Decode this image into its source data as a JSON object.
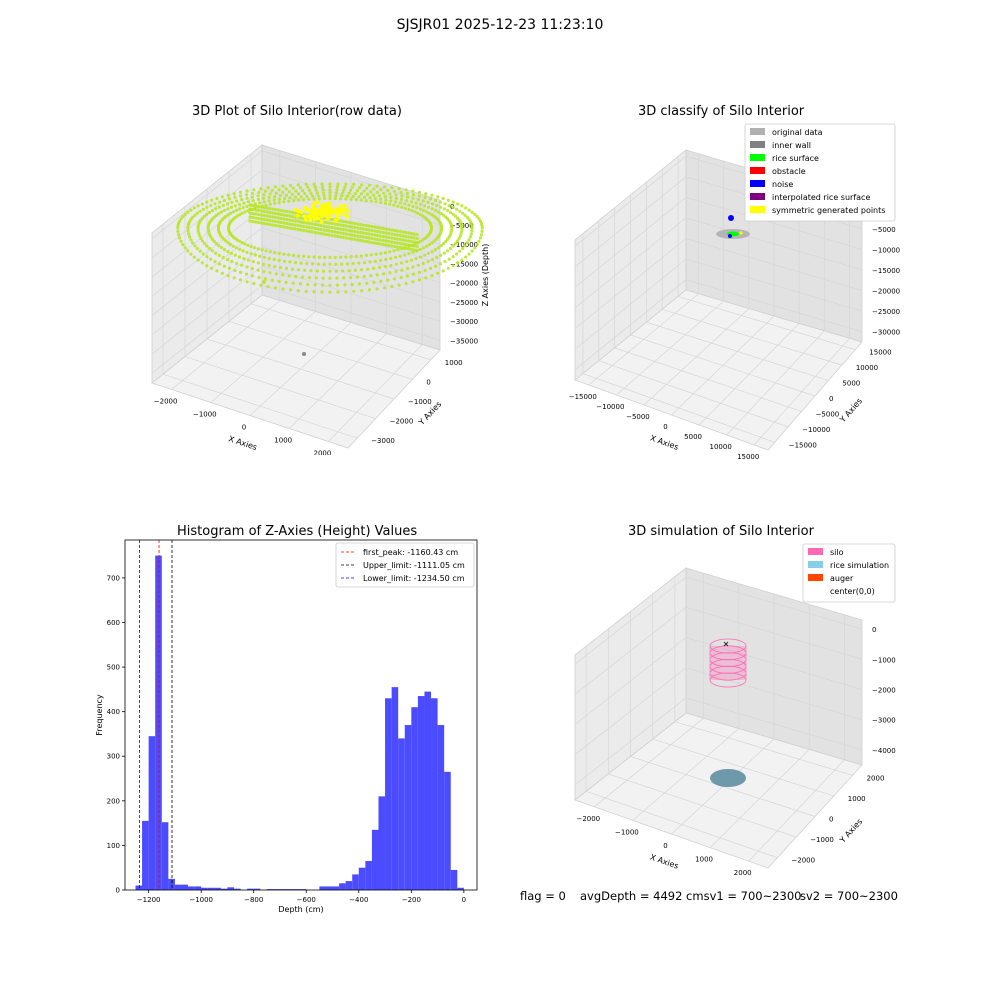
{
  "suptitle": "SJSJR01 2025-12-23 11:23:10",
  "status": {
    "flag": "flag = 0",
    "avg": "avgDepth = 4492 cmsv1 = 700~2300",
    "sv2": "sv2 = 700~2300"
  },
  "colors": {
    "raw_points": "#b5e61d",
    "symmetric": "#ffff00",
    "hist_bar": "#4b4bff",
    "first_peak_line": "#ff0000",
    "upper_line": "#000000",
    "lower_line": "#0000ff",
    "silo": "#ff69b4",
    "rice": "#87ceeb",
    "auger": "#ff4500"
  },
  "chart_data": [
    {
      "type": "scatter",
      "subtype": "3d",
      "title": "3D Plot of Silo Interior(row data)",
      "xlabel": "X Axies",
      "ylabel": "Y Axies",
      "zlabel": "Z Axies (Depth)",
      "x_ticks": [
        "−2000",
        "−1000",
        "0",
        "1000",
        "2000"
      ],
      "y_ticks": [
        "−3000",
        "−2000",
        "−1000",
        "0",
        "1000"
      ],
      "z_ticks": [
        "0",
        "−5000",
        "−10000",
        "−15000",
        "−20000",
        "−25000",
        "−30000",
        "−35000"
      ],
      "xlim": [
        -2600,
        2600
      ],
      "ylim": [
        -3400,
        1500
      ],
      "zlim": [
        -38000,
        2000
      ],
      "grid": true
    },
    {
      "type": "scatter",
      "subtype": "3d",
      "title": "3D classify of Silo Interior",
      "xlabel": "X Axies",
      "ylabel": "Y Axies",
      "zlabel": "Z Axies (Depth)",
      "x_ticks": [
        "−15000",
        "−10000",
        "−5000",
        "0",
        "5000",
        "10000",
        "15000"
      ],
      "y_ticks": [
        "−15000",
        "−10000",
        "−5000",
        "0",
        "5000",
        "10000",
        "15000"
      ],
      "z_ticks": [
        "0",
        "−5000",
        "−10000",
        "−15000",
        "−20000",
        "−25000",
        "−30000"
      ],
      "xlim": [
        -17000,
        17000
      ],
      "ylim": [
        -17000,
        17000
      ],
      "zlim": [
        -33000,
        2000
      ],
      "grid": true,
      "legend_position": "top-right",
      "legend": [
        {
          "label": "original data",
          "color": "#b0b0b0"
        },
        {
          "label": "inner wall",
          "color": "#808080"
        },
        {
          "label": "rice surface",
          "color": "#00ff00"
        },
        {
          "label": "obstacle",
          "color": "#ff0000"
        },
        {
          "label": "noise",
          "color": "#0000ff"
        },
        {
          "label": "interpolated rice surface",
          "color": "#800080"
        },
        {
          "label": "symmetric generated points",
          "color": "#ffff00"
        }
      ]
    },
    {
      "type": "bar",
      "subtype": "histogram",
      "title": "Histogram of Z-Axies (Height) Values",
      "xlabel": "Depth (cm)",
      "ylabel": "Frequency",
      "xlim": [
        -1290,
        50
      ],
      "ylim": [
        0,
        785
      ],
      "x_ticks": [
        -1200,
        -1000,
        -800,
        -600,
        -400,
        -200,
        0
      ],
      "x_tick_labels": [
        "−1200",
        "−1000",
        "−800",
        "−600",
        "−400",
        "−200",
        "0"
      ],
      "y_ticks": [
        0,
        100,
        200,
        300,
        400,
        500,
        600,
        700
      ],
      "bin_width": 25,
      "bins": [
        [
          -1250,
          10
        ],
        [
          -1225,
          155
        ],
        [
          -1200,
          345
        ],
        [
          -1175,
          750
        ],
        [
          -1150,
          152
        ],
        [
          -1125,
          25
        ],
        [
          -1100,
          12
        ],
        [
          -1075,
          12
        ],
        [
          -1050,
          8
        ],
        [
          -1025,
          8
        ],
        [
          -1000,
          5
        ],
        [
          -975,
          5
        ],
        [
          -950,
          5
        ],
        [
          -925,
          3
        ],
        [
          -900,
          6
        ],
        [
          -875,
          3
        ],
        [
          -850,
          0
        ],
        [
          -825,
          3
        ],
        [
          -800,
          3
        ],
        [
          -775,
          0
        ],
        [
          -750,
          2
        ],
        [
          -725,
          2
        ],
        [
          -700,
          2
        ],
        [
          -675,
          2
        ],
        [
          -650,
          2
        ],
        [
          -625,
          2
        ],
        [
          -600,
          0
        ],
        [
          -575,
          0
        ],
        [
          -550,
          8
        ],
        [
          -525,
          8
        ],
        [
          -500,
          8
        ],
        [
          -475,
          15
        ],
        [
          -450,
          20
        ],
        [
          -425,
          35
        ],
        [
          -400,
          50
        ],
        [
          -375,
          65
        ],
        [
          -350,
          135
        ],
        [
          -325,
          210
        ],
        [
          -300,
          430
        ],
        [
          -275,
          455
        ],
        [
          -250,
          340
        ],
        [
          -225,
          370
        ],
        [
          -200,
          410
        ],
        [
          -175,
          435
        ],
        [
          -150,
          445
        ],
        [
          -125,
          430
        ],
        [
          -100,
          370
        ],
        [
          -75,
          265
        ],
        [
          -50,
          45
        ],
        [
          -25,
          5
        ]
      ],
      "lines": [
        {
          "label": "first_peak: -1160.43 cm",
          "x": -1160.43,
          "color": "#ff0000"
        },
        {
          "label": "Upper_limit: -1111.05 cm",
          "x": -1111.05,
          "color": "#000000"
        },
        {
          "label": "Lower_limit: -1234.50 cm",
          "x": -1234.5,
          "color": "#0000ff"
        }
      ],
      "legend_position": "top-right"
    },
    {
      "type": "scatter",
      "subtype": "3d",
      "title": "3D simulation of Silo Interior",
      "xlabel": "X Axies",
      "ylabel": "Y Axies",
      "zlabel": "Z Axies (Depth)",
      "x_ticks": [
        "−2000",
        "−1000",
        "0",
        "1000",
        "2000"
      ],
      "y_ticks": [
        "−2000",
        "−1000",
        "0",
        "1000",
        "2000"
      ],
      "z_ticks": [
        "0",
        "−1000",
        "−2000",
        "−3000",
        "−4000"
      ],
      "xlim": [
        -2500,
        2500
      ],
      "ylim": [
        -2500,
        2500
      ],
      "zlim": [
        -4800,
        300
      ],
      "grid": true,
      "legend_position": "top-right",
      "legend": [
        {
          "label": "silo",
          "color": "#ff69b4"
        },
        {
          "label": "rice simulation",
          "color": "#87ceeb"
        },
        {
          "label": "auger",
          "color": "#ff4500"
        },
        {
          "label": "center(0,0)",
          "color": ""
        }
      ]
    }
  ]
}
